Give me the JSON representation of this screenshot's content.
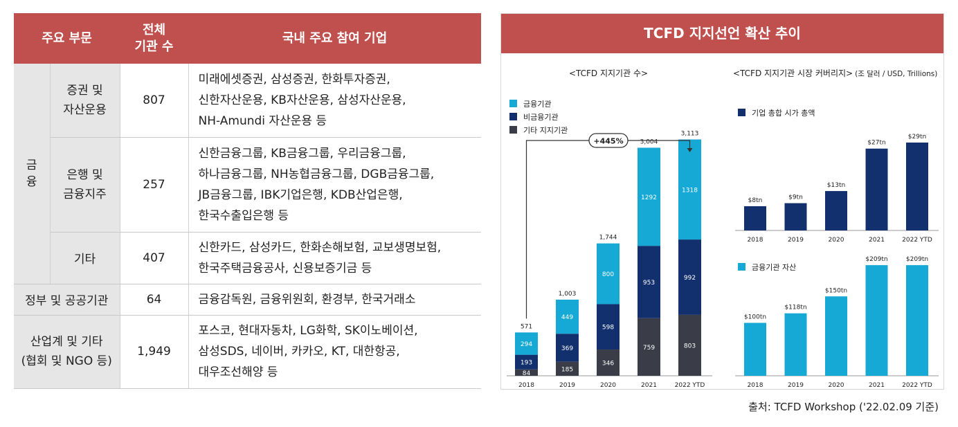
{
  "table": {
    "headers": [
      "주요 부문",
      "전체\n기관 수",
      "국내 주요 참여 기업"
    ],
    "finance_label": "금\n융",
    "rows": [
      {
        "category": "증권 및\n자산운용",
        "count": "807",
        "firms": "미래에셋증권, 삼성증권, 한화투자증권,\n신한자산운용, KB자산운용, 삼성자산운용,\nNH-Amundi 자산운용 등"
      },
      {
        "category": "은행 및\n금융지주",
        "count": "257",
        "firms": "신한금융그룹, KB금융그룹, 우리금융그룹,\n하나금융그룹, NH농협금융그룹, DGB금융그룹,\nJB금융그룹, IBK기업은행, KDB산업은행,\n한국수출입은행 등"
      },
      {
        "category": "기타",
        "count": "407",
        "firms": "신한카드, 삼성카드, 한화손해보험, 교보생명보험,\n한국주택금융공사, 신용보증기금 등"
      },
      {
        "category": "정부 및 공공기관",
        "count": "64",
        "firms": "금융감독원, 금융위원회, 환경부, 한국거래소"
      },
      {
        "category": "산업계 및 기타\n(협회 및 NGO 등)",
        "count": "1,949",
        "firms": "포스코, 현대자동차, LG화학, SK이노베이션,\n삼성SDS, 네이버, 카카오, KT, 대한항공,\n대우조선해양 등"
      }
    ]
  },
  "panel": {
    "title": "TCFD 지지선언 확산 추이",
    "colors": {
      "header": "#c0504d",
      "financial": "#17a9d6",
      "nonfinancial": "#13306e",
      "other": "#3a3d48"
    }
  },
  "chart_data": [
    {
      "type": "bar",
      "stacked": true,
      "title": "<TCFD 지지기관 수>",
      "categories": [
        "2018",
        "2019",
        "2020",
        "2021",
        "2022 YTD"
      ],
      "series": [
        {
          "name": "기타 지지기관",
          "values": [
            84,
            185,
            346,
            759,
            803
          ],
          "color": "#3a3d48"
        },
        {
          "name": "비금융기관",
          "values": [
            193,
            369,
            598,
            953,
            992
          ],
          "color": "#13306e"
        },
        {
          "name": "금융기관",
          "values": [
            294,
            449,
            800,
            1292,
            1318
          ],
          "color": "#17a9d6"
        }
      ],
      "totals": [
        "571",
        "1,003",
        "1,744",
        "3,004",
        "3,113"
      ],
      "annotation": "+445%",
      "ylim": [
        0,
        3500
      ]
    },
    {
      "type": "bar",
      "title": "<TCFD 지지기관 시장 커버리지>",
      "subtitle": "(조 달러 / USD, Trillions)",
      "categories": [
        "2018",
        "2019",
        "2020",
        "2021",
        "2022 YTD"
      ],
      "series": [
        {
          "name": "기업 총합 시가 총액",
          "values": [
            8,
            9,
            13,
            27,
            29
          ],
          "color": "#13306e"
        }
      ],
      "labels": [
        "$8tn",
        "$9tn",
        "$13tn",
        "$27tn",
        "$29tn"
      ],
      "ylim": [
        0,
        30
      ]
    },
    {
      "type": "bar",
      "categories": [
        "2018",
        "2019",
        "2020",
        "2021",
        "2022 YTD"
      ],
      "series": [
        {
          "name": "금융기관 자산",
          "values": [
            100,
            118,
            150,
            209,
            209
          ],
          "color": "#17a9d6"
        }
      ],
      "labels": [
        "$100tn",
        "$118tn",
        "$150tn",
        "$209tn",
        "$209tn"
      ],
      "ylim": [
        0,
        215
      ]
    }
  ],
  "source": "출처: TCFD Workshop ('22.02.09 기준)"
}
